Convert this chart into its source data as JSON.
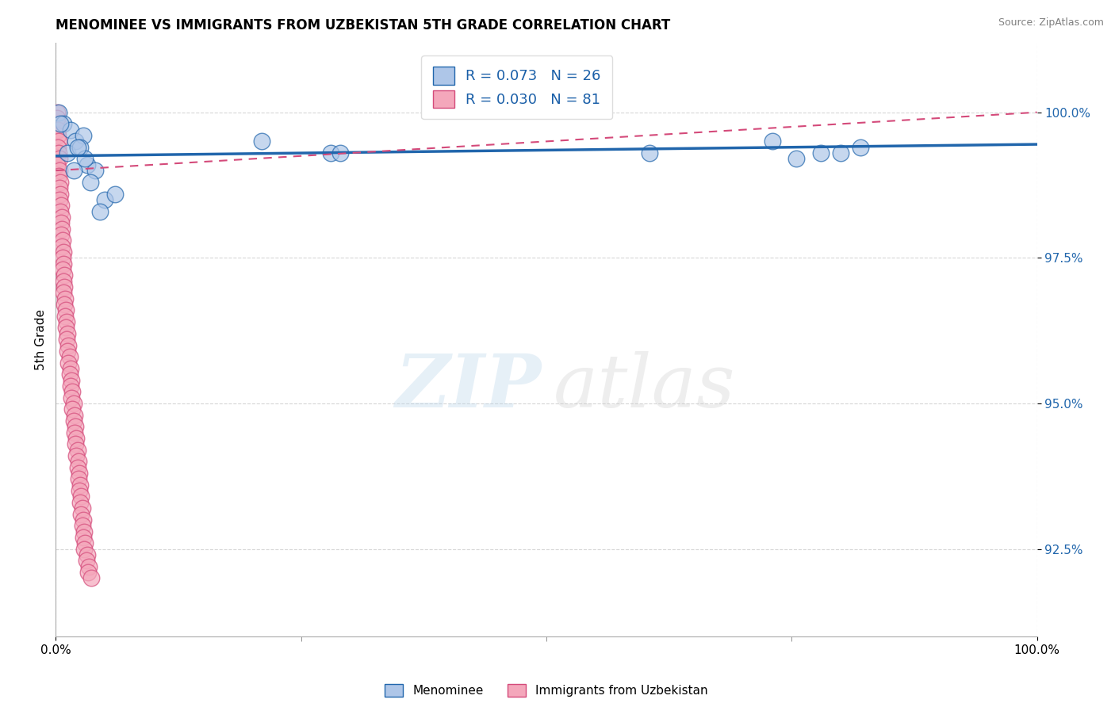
{
  "title": "MENOMINEE VS IMMIGRANTS FROM UZBEKISTAN 5TH GRADE CORRELATION CHART",
  "source": "Source: ZipAtlas.com",
  "ylabel": "5th Grade",
  "ytick_labels": [
    "92.5%",
    "95.0%",
    "97.5%",
    "100.0%"
  ],
  "ytick_values": [
    92.5,
    95.0,
    97.5,
    100.0
  ],
  "xlim": [
    0.0,
    100.0
  ],
  "ylim": [
    91.0,
    101.2
  ],
  "blue_color": "#aec6e8",
  "pink_color": "#f4a7bb",
  "trend_blue_color": "#2166ac",
  "trend_pink_color": "#d44a7a",
  "legend_label_blue": "Menominee",
  "legend_label_pink": "Immigrants from Uzbekistan",
  "blue_x": [
    0.3,
    0.8,
    1.5,
    2.0,
    2.8,
    1.2,
    0.5,
    2.5,
    3.2,
    4.0,
    3.5,
    5.0,
    1.8,
    3.0,
    2.2,
    4.5,
    6.0,
    21.0,
    28.0,
    29.0,
    60.5,
    73.0,
    75.5,
    78.0,
    80.0,
    82.0
  ],
  "blue_y": [
    100.0,
    99.8,
    99.7,
    99.5,
    99.6,
    99.3,
    99.8,
    99.4,
    99.1,
    99.0,
    98.8,
    98.5,
    99.0,
    99.2,
    99.4,
    98.3,
    98.6,
    99.5,
    99.3,
    99.3,
    99.3,
    99.5,
    99.2,
    99.3,
    99.3,
    99.4
  ],
  "blue_trend_x": [
    0.0,
    100.0
  ],
  "blue_trend_y": [
    99.25,
    99.45
  ],
  "pink_x": [
    0.15,
    0.2,
    0.1,
    0.25,
    0.18,
    0.3,
    0.22,
    0.28,
    0.35,
    0.12,
    0.4,
    0.32,
    0.45,
    0.38,
    0.5,
    0.42,
    0.55,
    0.48,
    0.6,
    0.52,
    0.65,
    0.58,
    0.7,
    0.62,
    0.75,
    0.68,
    0.8,
    0.72,
    0.85,
    0.78,
    0.9,
    0.82,
    0.95,
    0.88,
    1.0,
    0.92,
    1.1,
    1.0,
    1.2,
    1.1,
    1.3,
    1.2,
    1.4,
    1.3,
    1.5,
    1.4,
    1.6,
    1.5,
    1.7,
    1.6,
    1.8,
    1.7,
    1.9,
    1.8,
    2.0,
    1.9,
    2.1,
    2.0,
    2.2,
    2.1,
    2.3,
    2.2,
    2.4,
    2.3,
    2.5,
    2.4,
    2.6,
    2.5,
    2.7,
    2.6,
    2.8,
    2.7,
    2.9,
    2.8,
    3.0,
    2.9,
    3.2,
    3.1,
    3.4,
    3.3,
    3.6
  ],
  "pink_y": [
    100.0,
    99.8,
    99.9,
    99.7,
    99.6,
    99.5,
    99.4,
    99.3,
    99.2,
    99.1,
    99.0,
    98.9,
    98.8,
    98.7,
    98.6,
    98.5,
    98.4,
    98.3,
    98.2,
    98.1,
    98.0,
    97.9,
    97.8,
    97.7,
    97.6,
    97.5,
    97.4,
    97.3,
    97.2,
    97.1,
    97.0,
    96.9,
    96.8,
    96.7,
    96.6,
    96.5,
    96.4,
    96.3,
    96.2,
    96.1,
    96.0,
    95.9,
    95.8,
    95.7,
    95.6,
    95.5,
    95.4,
    95.3,
    95.2,
    95.1,
    95.0,
    94.9,
    94.8,
    94.7,
    94.6,
    94.5,
    94.4,
    94.3,
    94.2,
    94.1,
    94.0,
    93.9,
    93.8,
    93.7,
    93.6,
    93.5,
    93.4,
    93.3,
    93.2,
    93.1,
    93.0,
    92.9,
    92.8,
    92.7,
    92.6,
    92.5,
    92.4,
    92.3,
    92.2,
    92.1,
    92.0
  ],
  "pink_trend_x": [
    0.0,
    100.0
  ],
  "pink_trend_y": [
    99.0,
    100.0
  ]
}
